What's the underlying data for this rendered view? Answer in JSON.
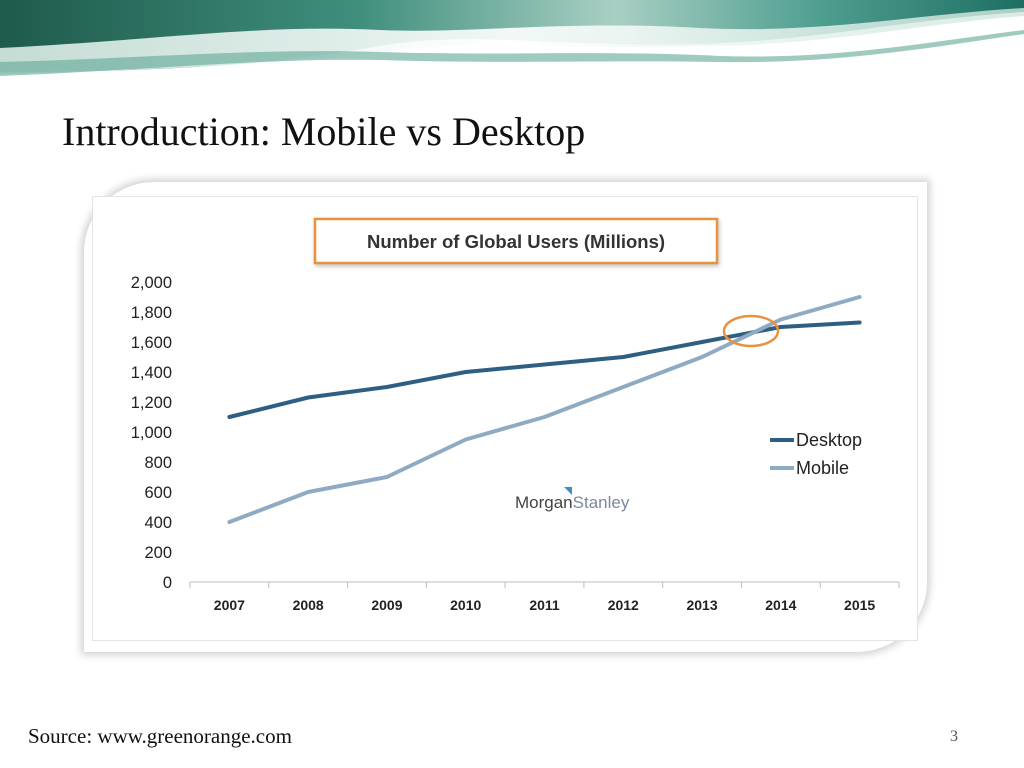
{
  "slide": {
    "title": "Introduction: Mobile vs Desktop",
    "source": "Source: www.greenorange.com",
    "page_number": "3"
  },
  "logo": {
    "part1": "Morgan",
    "part2": "Stanley"
  },
  "colors": {
    "desktop": "#2e5f82",
    "mobile": "#8fabc3",
    "title_border": "#e8913f",
    "highlight_circle": "#e8913f"
  },
  "chart_data": {
    "type": "line",
    "title": "Number of Global Users (Millions)",
    "xlabel": "",
    "ylabel": "",
    "x": [
      "2007",
      "2008",
      "2009",
      "2010",
      "2011",
      "2012",
      "2013",
      "2014",
      "2015"
    ],
    "y_ticks": [
      "0",
      "200",
      "400",
      "600",
      "800",
      "1,000",
      "1,200",
      "1,400",
      "1,600",
      "1,800",
      "2,000"
    ],
    "ylim": [
      0,
      2000
    ],
    "grid": false,
    "legend_position": "right",
    "series": [
      {
        "name": "Desktop",
        "values": [
          1100,
          1230,
          1300,
          1400,
          1450,
          1500,
          1600,
          1700,
          1730
        ]
      },
      {
        "name": "Mobile",
        "values": [
          400,
          600,
          700,
          950,
          1100,
          1300,
          1500,
          1750,
          1900
        ]
      }
    ],
    "annotation": "crossover circled near 2013.5"
  }
}
